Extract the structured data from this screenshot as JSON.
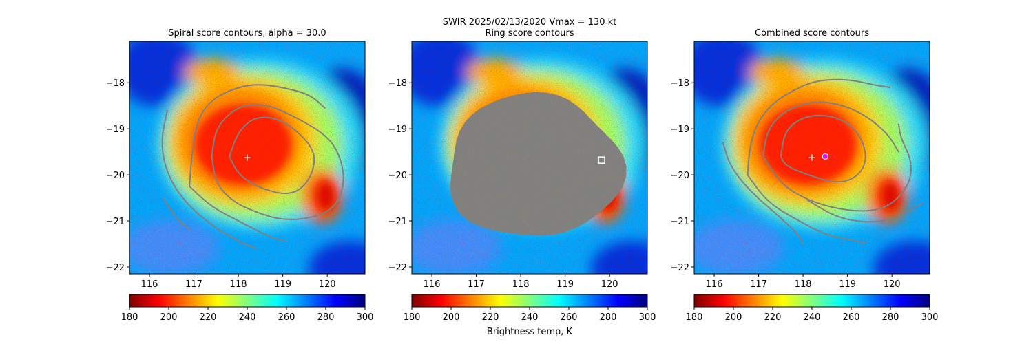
{
  "figure": {
    "suptitle_line1": "SWIR  2025/02/13/2020    Vmax = 130 kt",
    "colorbar_label": "Brightness temp, K"
  },
  "colors": {
    "contour": "#808080",
    "ring_mask": "#808080",
    "center_marker": "#ffffff",
    "candidate_marker_ring": "#ffffff",
    "candidate_marker_combined": "#ff00ff"
  },
  "chart_data": [
    {
      "type": "heatmap",
      "title": "Spiral score contours, alpha = 30.0",
      "colormap": "jet_r",
      "xlim": [
        115.55,
        120.85
      ],
      "ylim": [
        -22.15,
        -17.1
      ],
      "xticks": [
        "116",
        "117",
        "118",
        "119",
        "120"
      ],
      "yticks": [
        "−18",
        "−19",
        "−20",
        "−21",
        "−22"
      ],
      "cbar_ticks": [
        "180",
        "200",
        "220",
        "240",
        "260",
        "280",
        "300"
      ],
      "cbar_range": [
        180,
        300
      ],
      "center": {
        "marker": "+",
        "lon": 118.2,
        "lat": -19.63
      },
      "contours": [
        [
          [
            116.3,
            -20.5
          ],
          [
            116.6,
            -20.95
          ],
          [
            116.9,
            -21.2
          ]
        ],
        [
          [
            116.4,
            -18.6
          ],
          [
            116.25,
            -19.3
          ],
          [
            116.4,
            -20.0
          ],
          [
            116.8,
            -20.6
          ],
          [
            117.4,
            -21.1
          ],
          [
            118.0,
            -21.45
          ],
          [
            118.4,
            -21.6
          ]
        ],
        [
          [
            116.9,
            -20.25
          ],
          [
            116.95,
            -19.6
          ],
          [
            117.05,
            -18.9
          ],
          [
            117.3,
            -18.45
          ],
          [
            117.8,
            -18.15
          ],
          [
            118.4,
            -18.02
          ],
          [
            119.0,
            -18.1
          ],
          [
            119.6,
            -18.25
          ],
          [
            119.95,
            -18.55
          ]
        ],
        [
          [
            116.9,
            -20.25
          ],
          [
            117.4,
            -20.7
          ],
          [
            118.0,
            -21.0
          ],
          [
            118.7,
            -21.35
          ],
          [
            119.1,
            -21.45
          ]
        ],
        [
          [
            117.4,
            -19.6
          ],
          [
            117.5,
            -18.95
          ],
          [
            118.0,
            -18.5
          ],
          [
            118.6,
            -18.45
          ],
          [
            119.3,
            -18.75
          ],
          [
            120.0,
            -19.15
          ],
          [
            120.3,
            -19.6
          ],
          [
            120.4,
            -20.2
          ],
          [
            120.15,
            -20.75
          ],
          [
            119.6,
            -20.95
          ],
          [
            119.0,
            -20.98
          ],
          [
            118.5,
            -20.85
          ],
          [
            117.9,
            -20.6
          ],
          [
            117.5,
            -20.2
          ],
          [
            117.4,
            -19.6
          ]
        ],
        [
          [
            117.8,
            -19.6
          ],
          [
            118.0,
            -19.05
          ],
          [
            118.4,
            -18.72
          ],
          [
            119.0,
            -18.8
          ],
          [
            119.6,
            -19.3
          ],
          [
            119.75,
            -19.7
          ],
          [
            119.55,
            -20.2
          ],
          [
            119.15,
            -20.45
          ],
          [
            118.5,
            -20.3
          ],
          [
            118.0,
            -20.0
          ],
          [
            117.8,
            -19.6
          ]
        ]
      ]
    },
    {
      "type": "heatmap",
      "title": "Ring score contours",
      "colormap": "jet_r",
      "xlim": [
        115.55,
        120.85
      ],
      "ylim": [
        -22.15,
        -17.1
      ],
      "xticks": [
        "116",
        "117",
        "118",
        "119",
        "120"
      ],
      "yticks": [
        "−18",
        "−19",
        "−20",
        "−21",
        "−22"
      ],
      "cbar_ticks": [
        "180",
        "200",
        "220",
        "240",
        "260",
        "280",
        "300"
      ],
      "cbar_range": [
        180,
        300
      ],
      "ring_region": {
        "center_lon": 118.3,
        "center_lat": -19.82,
        "semi_lon": 1.95,
        "semi_lat": 1.55
      },
      "candidate": {
        "marker": "square",
        "lon": 119.82,
        "lat": -19.68
      }
    },
    {
      "type": "heatmap",
      "title": "Combined score contours",
      "colormap": "jet_r",
      "xlim": [
        115.55,
        120.85
      ],
      "ylim": [
        -22.15,
        -17.1
      ],
      "xticks": [
        "116",
        "117",
        "118",
        "119",
        "120"
      ],
      "yticks": [
        "−18",
        "−19",
        "−20",
        "−21",
        "−22"
      ],
      "cbar_ticks": [
        "180",
        "200",
        "220",
        "240",
        "260",
        "280",
        "300"
      ],
      "cbar_range": [
        180,
        300
      ],
      "center": {
        "marker": "+",
        "lon": 118.2,
        "lat": -19.63
      },
      "candidate": {
        "marker": "circle",
        "lon": 118.5,
        "lat": -19.6
      },
      "contours": [
        [
          [
            116.2,
            -19.3
          ],
          [
            116.35,
            -19.8
          ],
          [
            116.8,
            -20.35
          ],
          [
            117.4,
            -20.85
          ],
          [
            117.9,
            -21.3
          ],
          [
            118.0,
            -21.5
          ]
        ],
        [
          [
            116.75,
            -20.0
          ],
          [
            116.8,
            -19.4
          ],
          [
            116.95,
            -18.9
          ],
          [
            117.3,
            -18.45
          ],
          [
            117.8,
            -18.15
          ],
          [
            118.3,
            -17.95
          ],
          [
            119.0,
            -17.92
          ],
          [
            119.6,
            -18.05
          ],
          [
            119.95,
            -18.1
          ]
        ],
        [
          [
            116.75,
            -20.0
          ],
          [
            117.2,
            -20.6
          ],
          [
            117.9,
            -21.0
          ],
          [
            118.5,
            -21.3
          ],
          [
            119.0,
            -21.4
          ],
          [
            119.4,
            -21.48
          ]
        ],
        [
          [
            117.1,
            -19.6
          ],
          [
            117.2,
            -19.0
          ],
          [
            117.6,
            -18.6
          ],
          [
            118.2,
            -18.4
          ],
          [
            118.8,
            -18.45
          ],
          [
            119.4,
            -18.7
          ],
          [
            119.9,
            -19.1
          ],
          [
            120.15,
            -19.5
          ]
        ],
        [
          [
            117.1,
            -19.6
          ],
          [
            117.5,
            -20.2
          ],
          [
            118.1,
            -20.55
          ],
          [
            118.8,
            -20.75
          ],
          [
            119.5,
            -20.8
          ],
          [
            120.0,
            -20.65
          ],
          [
            120.4,
            -20.2
          ],
          [
            120.45,
            -19.7
          ],
          [
            120.2,
            -19.2
          ],
          [
            120.15,
            -18.9
          ]
        ],
        [
          [
            118.1,
            -20.55
          ],
          [
            118.8,
            -20.95
          ],
          [
            119.6,
            -21.05
          ],
          [
            120.2,
            -20.9
          ],
          [
            120.7,
            -20.6
          ]
        ],
        [
          [
            117.5,
            -19.6
          ],
          [
            117.6,
            -19.0
          ],
          [
            118.1,
            -18.7
          ],
          [
            118.7,
            -18.72
          ],
          [
            119.2,
            -19.0
          ],
          [
            119.45,
            -19.55
          ],
          [
            119.3,
            -20.0
          ],
          [
            118.8,
            -20.2
          ],
          [
            118.1,
            -20.0
          ],
          [
            117.6,
            -19.8
          ],
          [
            117.5,
            -19.6
          ]
        ]
      ]
    }
  ]
}
